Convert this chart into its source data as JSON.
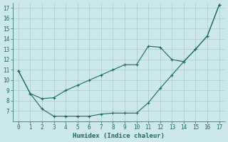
{
  "xlabel": "Humidex (Indice chaleur)",
  "x": [
    0,
    1,
    2,
    3,
    4,
    5,
    6,
    7,
    8,
    9,
    10,
    11,
    12,
    13,
    14,
    15,
    16,
    17
  ],
  "y_upper": [
    10.9,
    8.7,
    8.2,
    8.3,
    9.0,
    9.5,
    10.0,
    10.5,
    11.0,
    11.5,
    11.5,
    13.3,
    13.2,
    12.0,
    11.8,
    13.0,
    14.3,
    17.3
  ],
  "y_lower": [
    10.9,
    8.7,
    7.2,
    6.5,
    6.5,
    6.5,
    6.5,
    6.7,
    6.8,
    6.8,
    6.8,
    7.8,
    9.2,
    10.5,
    11.8,
    13.0,
    14.3,
    17.3
  ],
  "line_color": "#1a6b5a",
  "bg_color": "#cce8ea",
  "grid_color": "#aac8cc",
  "xlim": [
    -0.5,
    17.5
  ],
  "ylim": [
    6,
    17.5
  ],
  "xticks": [
    0,
    1,
    2,
    3,
    4,
    5,
    6,
    7,
    8,
    9,
    10,
    11,
    12,
    13,
    14,
    15,
    16,
    17
  ],
  "yticks": [
    7,
    8,
    9,
    10,
    11,
    12,
    13,
    14,
    15,
    16,
    17
  ],
  "tick_labelsize": 5.5,
  "xlabel_fontsize": 6.5
}
